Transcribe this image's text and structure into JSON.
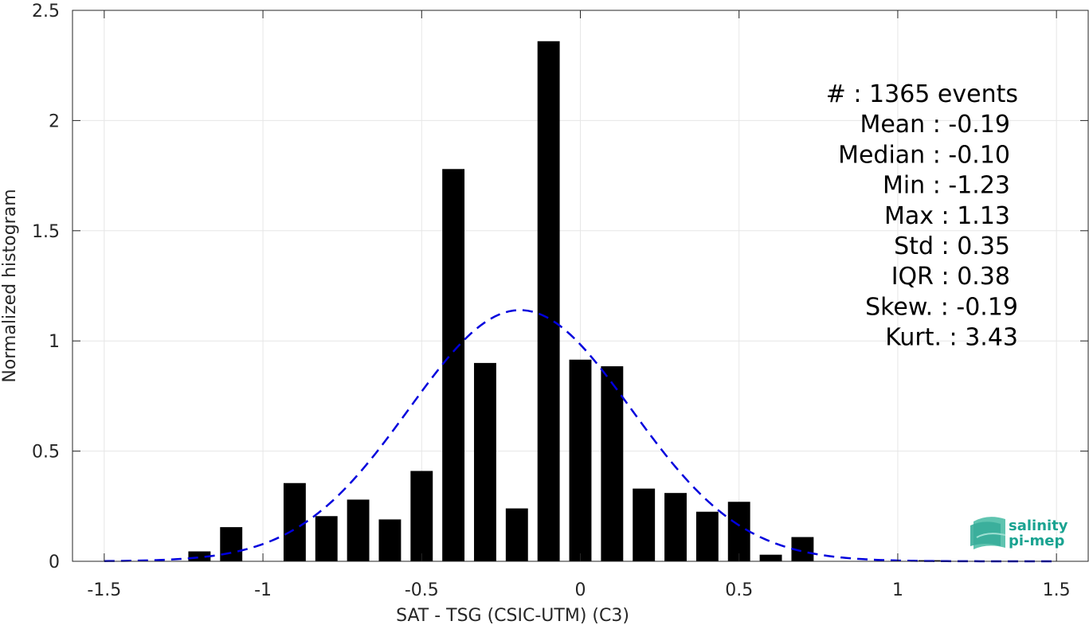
{
  "chart_data": {
    "type": "bar",
    "xlabel": "SAT - TSG (CSIC-UTM) (C3)",
    "ylabel": "Normalized histogram",
    "xlim": [
      -1.6,
      1.6
    ],
    "ylim": [
      0,
      2.5
    ],
    "xticks": [
      -1.5,
      -1,
      -0.5,
      0,
      0.5,
      1,
      1.5
    ],
    "xtick_labels": [
      "-1.5",
      "-1",
      "-0.5",
      "0",
      "0.5",
      "1",
      "1.5"
    ],
    "yticks": [
      0,
      0.5,
      1,
      1.5,
      2,
      2.5
    ],
    "ytick_labels": [
      "0",
      "0.5",
      "1",
      "1.5",
      "2",
      "2.5"
    ],
    "grid": true,
    "bar_width": 0.07,
    "bars": {
      "x": [
        -1.2,
        -1.1,
        -0.9,
        -0.8,
        -0.7,
        -0.6,
        -0.5,
        -0.4,
        -0.3,
        -0.2,
        -0.1,
        0.0,
        0.1,
        0.2,
        0.3,
        0.4,
        0.5,
        0.6,
        0.7,
        1.1
      ],
      "y": [
        0.045,
        0.155,
        0.355,
        0.205,
        0.28,
        0.19,
        0.41,
        1.78,
        0.9,
        0.24,
        2.36,
        0.915,
        0.885,
        0.33,
        0.31,
        0.225,
        0.27,
        0.03,
        0.11,
        0.005
      ],
      "color": "#000000"
    },
    "fit_curve": {
      "style": "dashed",
      "color": "#0000dd",
      "mean": -0.19,
      "std": 0.35,
      "x_range": [
        -1.5,
        1.5
      ]
    },
    "stats": [
      "#  : 1365 events",
      "Mean : -0.19",
      "Median : -0.10",
      "Min : -1.23",
      "Max : 1.13",
      "Std : 0.35",
      "IQR : 0.38",
      "Skew. : -0.19",
      "Kurt. : 3.43"
    ]
  },
  "logo": {
    "line1": "salinity",
    "line2": "pi-mep",
    "color": "#1aa391"
  }
}
